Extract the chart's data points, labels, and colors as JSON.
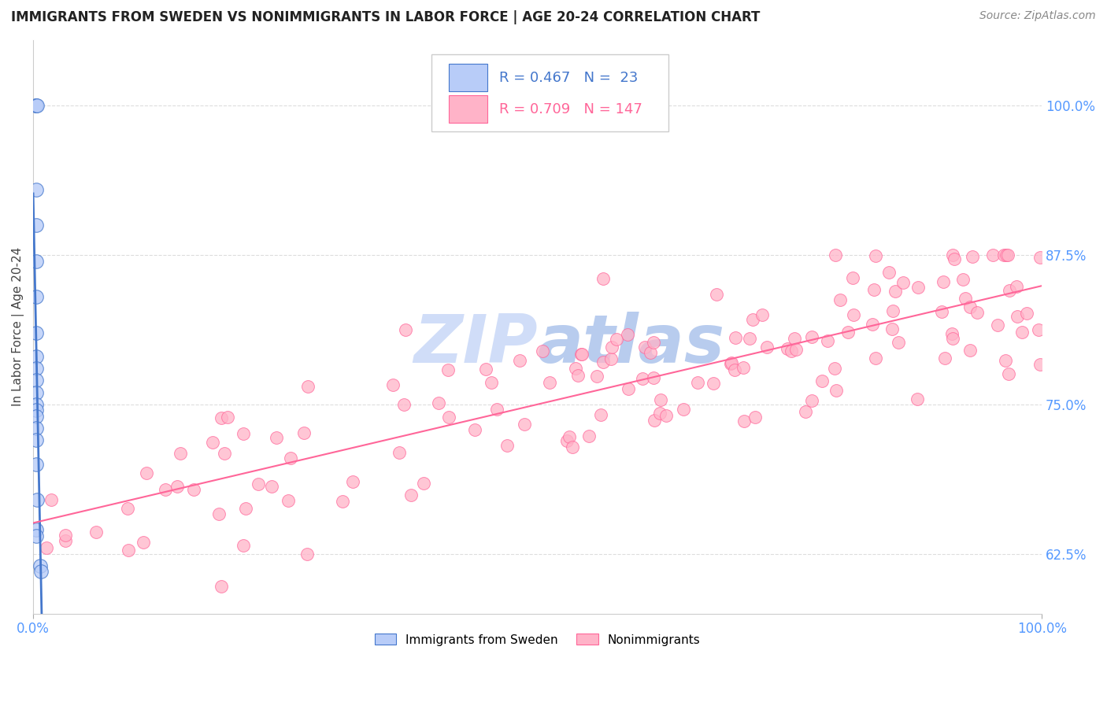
{
  "title": "IMMIGRANTS FROM SWEDEN VS NONIMMIGRANTS IN LABOR FORCE | AGE 20-24 CORRELATION CHART",
  "source": "Source: ZipAtlas.com",
  "ylabel": "In Labor Force | Age 20-24",
  "legend_bottom": [
    "Immigrants from Sweden",
    "Nonimmigrants"
  ],
  "blue_scatter_color": "#b8ccf8",
  "pink_scatter_color": "#ffb3c8",
  "blue_line_color": "#4477cc",
  "pink_line_color": "#ff6699",
  "background_color": "#ffffff",
  "grid_color": "#dddddd",
  "title_color": "#222222",
  "source_color": "#888888",
  "tick_color": "#5599ff",
  "watermark_color": "#d0ddf8",
  "blue_R": 0.467,
  "blue_N": 23,
  "pink_R": 0.709,
  "pink_N": 147,
  "xlim": [
    0.0,
    1.0
  ],
  "ylim": [
    0.575,
    1.055
  ],
  "yticks": [
    0.625,
    0.75,
    0.875,
    1.0
  ],
  "ytick_labels": [
    "62.5%",
    "75.0%",
    "87.5%",
    "100.0%"
  ],
  "xtick_labels": [
    "0.0%",
    "100.0%"
  ]
}
